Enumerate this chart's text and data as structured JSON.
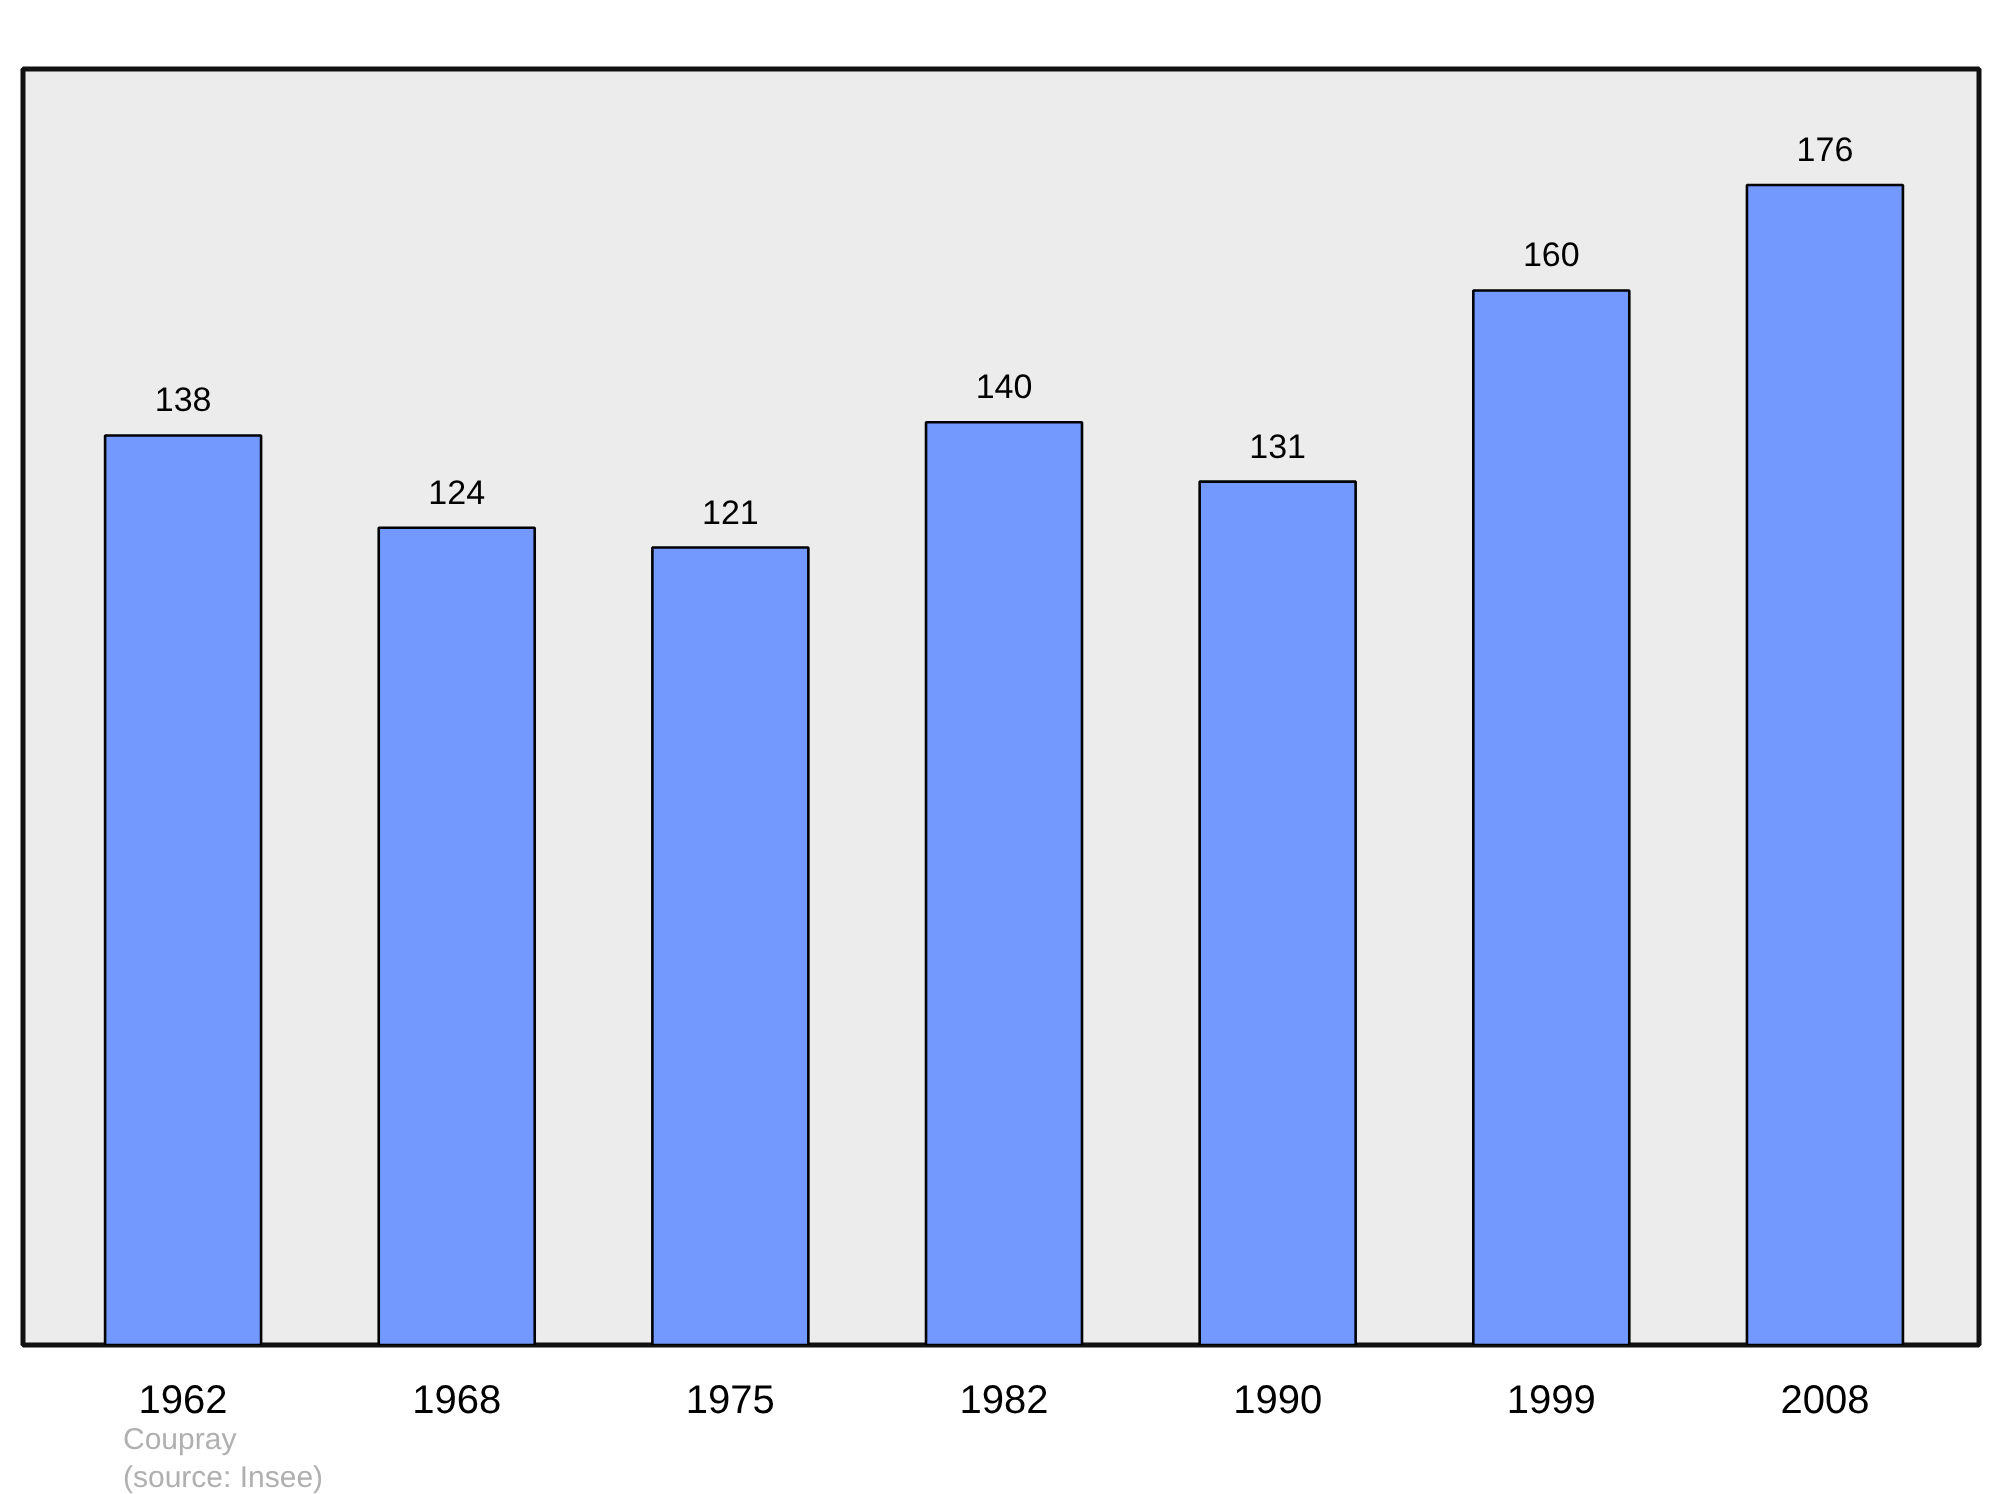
{
  "chart_data": {
    "type": "bar",
    "categories": [
      "1962",
      "1968",
      "1975",
      "1982",
      "1990",
      "1999",
      "2008"
    ],
    "values": [
      138,
      124,
      121,
      140,
      131,
      160,
      176
    ],
    "color": "#7399ff",
    "data_labels": true,
    "grid": false,
    "tick_labels": "x",
    "annotations": [
      "Coupray",
      "(source: Insee)"
    ]
  }
}
